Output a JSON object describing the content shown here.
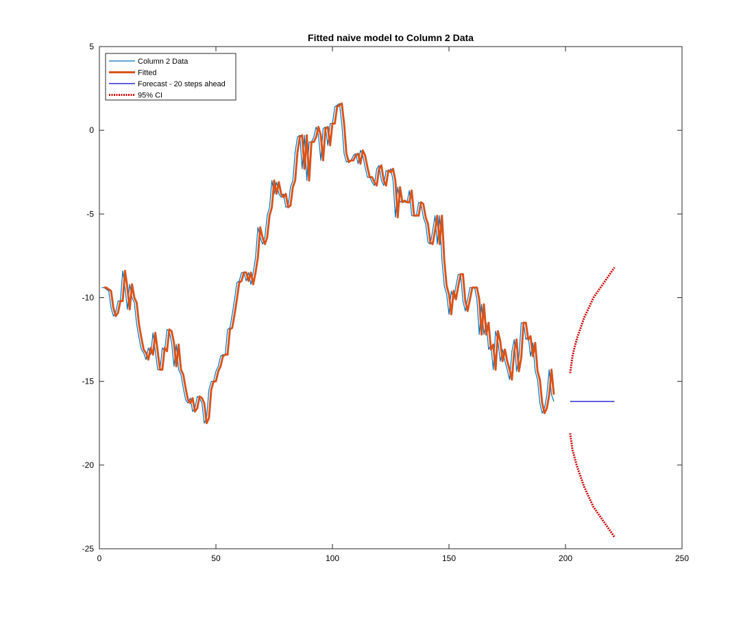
{
  "chart_data": {
    "type": "line",
    "title": "Fitted naive model to Column 2 Data",
    "xlabel": "",
    "ylabel": "",
    "xlim": [
      0,
      250
    ],
    "ylim": [
      -25,
      5
    ],
    "x_ticks": [
      0,
      50,
      100,
      150,
      200,
      250
    ],
    "y_ticks": [
      -25,
      -20,
      -15,
      -10,
      -5,
      0,
      5
    ],
    "grid": false,
    "legend_position": "top-left",
    "series": [
      {
        "name": "Column 2 Data",
        "color": "#0072BD",
        "style": "solid-thin",
        "x_start": 1,
        "values": [
          -9.4,
          -9.4,
          -9.5,
          -9.6,
          -10.6,
          -11.1,
          -10.9,
          -10.2,
          -10.2,
          -8.4,
          -9.4,
          -10.7,
          -9.2,
          -10.0,
          -10.3,
          -11.6,
          -12.4,
          -13.1,
          -13.3,
          -13.7,
          -13.0,
          -13.4,
          -12.1,
          -13.2,
          -14.3,
          -14.3,
          -13.0,
          -13.2,
          -11.9,
          -12.0,
          -12.7,
          -14.1,
          -12.8,
          -14.3,
          -14.6,
          -15.4,
          -16.1,
          -16.3,
          -16.0,
          -16.8,
          -16.6,
          -15.9,
          -16.0,
          -16.3,
          -17.5,
          -17.2,
          -15.5,
          -15.0,
          -15.0,
          -14.4,
          -14.1,
          -13.5,
          -13.4,
          -13.4,
          -11.9,
          -11.8,
          -11.0,
          -10.1,
          -9.1,
          -9.0,
          -8.5,
          -8.5,
          -9.0,
          -8.5,
          -9.2,
          -8.5,
          -7.6,
          -5.8,
          -6.4,
          -6.8,
          -6.4,
          -5.1,
          -4.6,
          -3.0,
          -3.8,
          -3.1,
          -3.8,
          -4.0,
          -3.8,
          -4.6,
          -4.5,
          -3.4,
          -3.0,
          -1.3,
          -0.4,
          -0.3,
          -2.3,
          -0.3,
          -3.0,
          -0.7,
          -0.7,
          -0.4,
          0.2,
          -0.3,
          -1.8,
          0.1,
          0.2,
          -0.9,
          0.4,
          0.4,
          1.4,
          1.5,
          1.6,
          0.4,
          -1.4,
          -1.9,
          -1.8,
          -1.8,
          -1.5,
          -1.4,
          -2.0,
          -1.2,
          -1.5,
          -2.2,
          -2.8,
          -2.8,
          -3.1,
          -3.3,
          -2.3,
          -2.1,
          -3.0,
          -3.3,
          -2.4,
          -2.5,
          -2.3,
          -3.0,
          -5.2,
          -3.4,
          -4.3,
          -4.2,
          -4.3,
          -4.3,
          -3.6,
          -5.1,
          -5.1,
          -5.1,
          -4.3,
          -4.4,
          -5.2,
          -5.6,
          -6.7,
          -6.8,
          -6.0,
          -5.1,
          -6.8,
          -5.1,
          -7.8,
          -9.3,
          -9.8,
          -11.0,
          -9.6,
          -10.1,
          -9.3,
          -8.6,
          -8.6,
          -10.2,
          -10.8,
          -10.1,
          -9.4,
          -9.4,
          -9.4,
          -10.1,
          -12.2,
          -10.4,
          -12.2,
          -11.5,
          -13.1,
          -12.8,
          -14.3,
          -12.0,
          -12.6,
          -13.8,
          -13.1,
          -13.8,
          -14.3,
          -14.9,
          -13.2,
          -12.5,
          -14.4,
          -13.6,
          -11.5,
          -11.5,
          -12.5,
          -12.3,
          -13.5,
          -12.7,
          -14.4,
          -14.9,
          -16.3,
          -16.9,
          -16.6,
          -15.8,
          -14.3,
          -15.8,
          -16.2
        ]
      },
      {
        "name": "Fitted",
        "color": "#D95319",
        "style": "solid-thick",
        "x_start": 2,
        "values": [
          -9.4,
          -9.4,
          -9.5,
          -9.6,
          -10.6,
          -11.1,
          -10.9,
          -10.2,
          -10.2,
          -8.4,
          -9.4,
          -10.7,
          -9.2,
          -10.0,
          -10.3,
          -11.6,
          -12.4,
          -13.1,
          -13.3,
          -13.7,
          -13.0,
          -13.4,
          -12.1,
          -13.2,
          -14.3,
          -14.3,
          -13.0,
          -13.2,
          -11.9,
          -12.0,
          -12.7,
          -14.1,
          -12.8,
          -14.3,
          -14.6,
          -15.4,
          -16.1,
          -16.3,
          -16.0,
          -16.8,
          -16.6,
          -15.9,
          -16.0,
          -16.3,
          -17.5,
          -17.2,
          -15.5,
          -15.0,
          -15.0,
          -14.4,
          -14.1,
          -13.5,
          -13.4,
          -13.4,
          -11.9,
          -11.8,
          -11.0,
          -10.1,
          -9.1,
          -9.0,
          -8.5,
          -8.5,
          -9.0,
          -8.5,
          -9.2,
          -8.5,
          -7.6,
          -5.8,
          -6.4,
          -6.8,
          -6.4,
          -5.1,
          -4.6,
          -3.0,
          -3.8,
          -3.1,
          -3.8,
          -4.0,
          -3.8,
          -4.6,
          -4.5,
          -3.4,
          -3.0,
          -1.3,
          -0.4,
          -0.3,
          -2.3,
          -0.3,
          -3.0,
          -0.7,
          -0.7,
          -0.4,
          0.2,
          -0.3,
          -1.8,
          0.1,
          0.2,
          -0.9,
          0.4,
          0.4,
          1.4,
          1.5,
          1.6,
          0.4,
          -1.4,
          -1.9,
          -1.8,
          -1.8,
          -1.5,
          -1.4,
          -2.0,
          -1.2,
          -1.5,
          -2.2,
          -2.8,
          -2.8,
          -3.1,
          -3.3,
          -2.3,
          -2.1,
          -3.0,
          -3.3,
          -2.4,
          -2.5,
          -2.3,
          -3.0,
          -5.2,
          -3.4,
          -4.3,
          -4.2,
          -4.3,
          -4.3,
          -3.6,
          -5.1,
          -5.1,
          -5.1,
          -4.3,
          -4.4,
          -5.2,
          -5.6,
          -6.7,
          -6.8,
          -6.0,
          -5.1,
          -6.8,
          -5.1,
          -7.8,
          -9.3,
          -9.8,
          -11.0,
          -9.6,
          -10.1,
          -9.3,
          -8.6,
          -8.6,
          -10.2,
          -10.8,
          -10.1,
          -9.4,
          -9.4,
          -9.4,
          -10.1,
          -12.2,
          -10.4,
          -12.2,
          -11.5,
          -13.1,
          -12.8,
          -14.3,
          -12.0,
          -12.6,
          -13.8,
          -13.1,
          -13.8,
          -14.3,
          -14.9,
          -13.2,
          -12.5,
          -14.4,
          -13.6,
          -11.5,
          -11.5,
          -12.5,
          -12.3,
          -13.5,
          -12.7,
          -14.4,
          -14.9,
          -16.3,
          -16.9,
          -16.6,
          -15.8,
          -14.3,
          -15.8
        ]
      },
      {
        "name": "Forecast - 20 steps ahead",
        "color": "#0000CC",
        "style": "solid-thin",
        "x": [
          202,
          221
        ],
        "values": [
          -16.2,
          -16.2
        ]
      },
      {
        "name": "95% CI",
        "color": "#CC0000",
        "style": "dotted-thick",
        "x_start": 202,
        "upper": [
          -14.5,
          -13.5,
          -12.9,
          -12.4,
          -12.0,
          -11.6,
          -11.2,
          -10.9,
          -10.6,
          -10.3,
          -10.0,
          -9.8,
          -9.6,
          -9.4,
          -9.2,
          -9.0,
          -8.8,
          -8.6,
          -8.4,
          -8.2
        ],
        "lower": [
          -18.1,
          -19.1,
          -19.6,
          -20.1,
          -20.5,
          -20.9,
          -21.3,
          -21.6,
          -21.9,
          -22.2,
          -22.5,
          -22.7,
          -22.9,
          -23.1,
          -23.3,
          -23.5,
          -23.7,
          -23.9,
          -24.1,
          -24.3
        ]
      }
    ]
  }
}
